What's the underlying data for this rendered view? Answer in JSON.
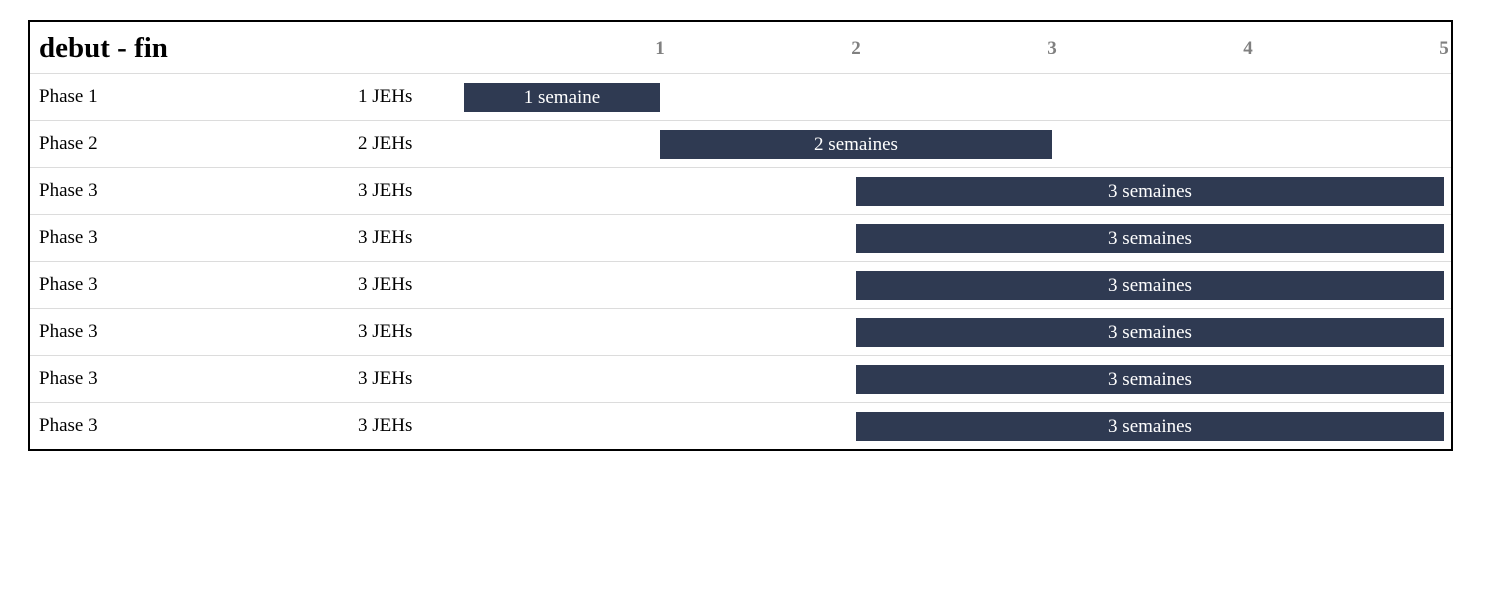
{
  "chart_data": {
    "type": "gantt",
    "title": "debut - fin",
    "x_ticks": [
      "1",
      "2",
      "3",
      "4",
      "5"
    ],
    "xlim": [
      0,
      5
    ],
    "colors": {
      "bar": "#2f3a52",
      "tick": "#808080",
      "grid": "#dcdcdc"
    },
    "rows": [
      {
        "name": "Phase 1",
        "jeh": "1 JEHs",
        "start": 0,
        "end": 1,
        "label": "1 semaine"
      },
      {
        "name": "Phase 2",
        "jeh": "2 JEHs",
        "start": 1,
        "end": 3,
        "label": "2 semaines"
      },
      {
        "name": "Phase 3",
        "jeh": "3 JEHs",
        "start": 2,
        "end": 5,
        "label": "3 semaines"
      },
      {
        "name": "Phase 3",
        "jeh": "3 JEHs",
        "start": 2,
        "end": 5,
        "label": "3 semaines"
      },
      {
        "name": "Phase 3",
        "jeh": "3 JEHs",
        "start": 2,
        "end": 5,
        "label": "3 semaines"
      },
      {
        "name": "Phase 3",
        "jeh": "3 JEHs",
        "start": 2,
        "end": 5,
        "label": "3 semaines"
      },
      {
        "name": "Phase 3",
        "jeh": "3 JEHs",
        "start": 2,
        "end": 5,
        "label": "3 semaines"
      },
      {
        "name": "Phase 3",
        "jeh": "3 JEHs",
        "start": 2,
        "end": 5,
        "label": "3 semaines"
      }
    ]
  }
}
